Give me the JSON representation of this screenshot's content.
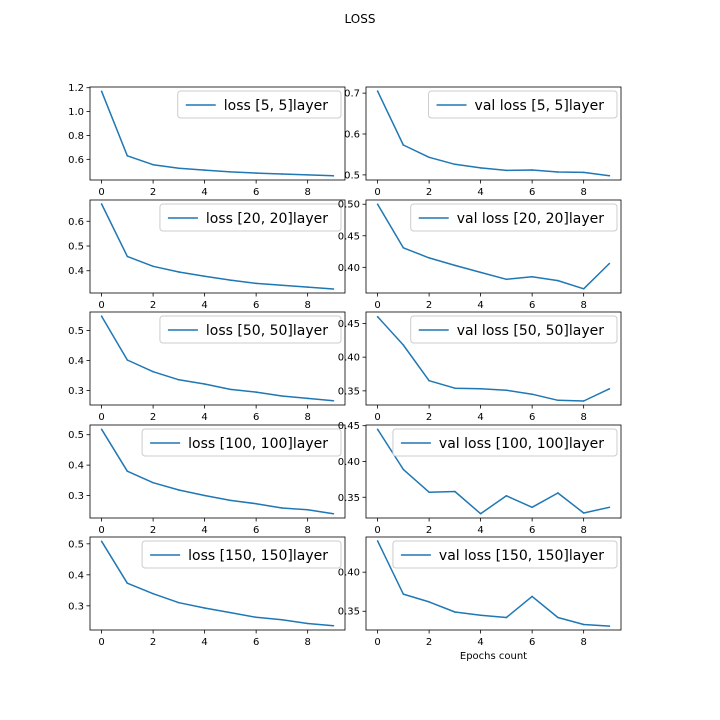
{
  "figure": {
    "suptitle": "LOSS",
    "line_color": "#1f77b4"
  },
  "chart_data": [
    {
      "type": "line",
      "series": [
        {
          "name": "loss [5, 5]layer",
          "x": [
            0,
            1,
            2,
            3,
            4,
            5,
            6,
            7,
            8,
            9
          ],
          "values": [
            1.17,
            0.63,
            0.555,
            0.525,
            0.51,
            0.495,
            0.485,
            0.477,
            0.47,
            0.462
          ]
        }
      ],
      "xticks": [
        0,
        2,
        4,
        6,
        8
      ],
      "yticks": [
        0.6,
        0.8,
        1.0,
        1.2
      ],
      "ytick_labels": [
        "0.6",
        "0.8",
        "1.0",
        "1.2"
      ],
      "xlim": [
        -0.45,
        9.45
      ],
      "ylim": [
        0.427,
        1.206
      ],
      "legend": "upper right",
      "grid": false,
      "xlabel": ""
    },
    {
      "type": "line",
      "series": [
        {
          "name": "val loss [5, 5]layer",
          "x": [
            0,
            1,
            2,
            3,
            4,
            5,
            6,
            7,
            8,
            9
          ],
          "values": [
            0.705,
            0.573,
            0.543,
            0.526,
            0.517,
            0.511,
            0.512,
            0.507,
            0.506,
            0.498
          ]
        }
      ],
      "xticks": [
        0,
        2,
        4,
        6,
        8
      ],
      "yticks": [
        0.5,
        0.6,
        0.7
      ],
      "ytick_labels": [
        "0.5",
        "0.6",
        "0.7"
      ],
      "xlim": [
        -0.45,
        9.45
      ],
      "ylim": [
        0.4875,
        0.715
      ],
      "legend": "upper right",
      "grid": false,
      "xlabel": ""
    },
    {
      "type": "line",
      "series": [
        {
          "name": "loss [20, 20]layer",
          "x": [
            0,
            1,
            2,
            3,
            4,
            5,
            6,
            7,
            8,
            9
          ],
          "values": [
            0.67,
            0.458,
            0.418,
            0.395,
            0.378,
            0.362,
            0.349,
            0.341,
            0.334,
            0.326
          ]
        }
      ],
      "xticks": [
        0,
        2,
        4,
        6,
        8
      ],
      "yticks": [
        0.4,
        0.5,
        0.6
      ],
      "ytick_labels": [
        "0.4",
        "0.5",
        "0.6"
      ],
      "xlim": [
        -0.45,
        9.45
      ],
      "ylim": [
        0.31,
        0.686
      ],
      "legend": "upper right",
      "grid": false,
      "xlabel": ""
    },
    {
      "type": "line",
      "series": [
        {
          "name": "val loss [20, 20]layer",
          "x": [
            0,
            1,
            2,
            3,
            4,
            5,
            6,
            7,
            8,
            9
          ],
          "values": [
            0.5,
            0.431,
            0.415,
            0.403,
            0.392,
            0.381,
            0.385,
            0.379,
            0.366,
            0.406
          ]
        }
      ],
      "xticks": [
        0,
        2,
        4,
        6,
        8
      ],
      "yticks": [
        0.4,
        0.45,
        0.5
      ],
      "ytick_labels": [
        "0.40",
        "0.45",
        "0.50"
      ],
      "xlim": [
        -0.45,
        9.45
      ],
      "ylim": [
        0.3593,
        0.5067
      ],
      "legend": "upper right",
      "grid": false,
      "xlabel": ""
    },
    {
      "type": "line",
      "series": [
        {
          "name": "loss [50, 50]layer",
          "x": [
            0,
            1,
            2,
            3,
            4,
            5,
            6,
            7,
            8,
            9
          ],
          "values": [
            0.548,
            0.402,
            0.363,
            0.336,
            0.322,
            0.304,
            0.295,
            0.282,
            0.274,
            0.266
          ]
        }
      ],
      "xticks": [
        0,
        2,
        4,
        6,
        8
      ],
      "yticks": [
        0.3,
        0.4,
        0.5
      ],
      "ytick_labels": [
        "0.3",
        "0.4",
        "0.5"
      ],
      "xlim": [
        -0.45,
        9.45
      ],
      "ylim": [
        0.252,
        0.562
      ],
      "legend": "upper right",
      "grid": false,
      "xlabel": ""
    },
    {
      "type": "line",
      "series": [
        {
          "name": "val loss [50, 50]layer",
          "x": [
            0,
            1,
            2,
            3,
            4,
            5,
            6,
            7,
            8,
            9
          ],
          "values": [
            0.46,
            0.418,
            0.365,
            0.354,
            0.353,
            0.351,
            0.345,
            0.336,
            0.335,
            0.353
          ]
        }
      ],
      "xticks": [
        0,
        2,
        4,
        6,
        8
      ],
      "yticks": [
        0.35,
        0.4,
        0.45
      ],
      "ytick_labels": [
        "0.35",
        "0.40",
        "0.45"
      ],
      "xlim": [
        -0.45,
        9.45
      ],
      "ylim": [
        0.329,
        0.467
      ],
      "legend": "upper right",
      "grid": false,
      "xlabel": ""
    },
    {
      "type": "line",
      "series": [
        {
          "name": "loss [100, 100]layer",
          "x": [
            0,
            1,
            2,
            3,
            4,
            5,
            6,
            7,
            8,
            9
          ],
          "values": [
            0.518,
            0.38,
            0.342,
            0.318,
            0.3,
            0.284,
            0.273,
            0.259,
            0.253,
            0.24
          ]
        }
      ],
      "xticks": [
        0,
        2,
        4,
        6,
        8
      ],
      "yticks": [
        0.3,
        0.4,
        0.5
      ],
      "ytick_labels": [
        "0.3",
        "0.4",
        "0.5"
      ],
      "xlim": [
        -0.45,
        9.45
      ],
      "ylim": [
        0.226,
        0.532
      ],
      "legend": "upper right",
      "grid": false,
      "xlabel": ""
    },
    {
      "type": "line",
      "series": [
        {
          "name": "val loss [100, 100]layer",
          "x": [
            0,
            1,
            2,
            3,
            4,
            5,
            6,
            7,
            8,
            9
          ],
          "values": [
            0.445,
            0.389,
            0.357,
            0.358,
            0.327,
            0.352,
            0.336,
            0.356,
            0.328,
            0.336
          ]
        }
      ],
      "xticks": [
        0,
        2,
        4,
        6,
        8
      ],
      "yticks": [
        0.35,
        0.4,
        0.45
      ],
      "ytick_labels": [
        "0.35",
        "0.40",
        "0.45"
      ],
      "xlim": [
        -0.45,
        9.45
      ],
      "ylim": [
        0.321,
        0.451
      ],
      "legend": "upper right",
      "grid": false,
      "xlabel": ""
    },
    {
      "type": "line",
      "series": [
        {
          "name": "loss [150, 150]layer",
          "x": [
            0,
            1,
            2,
            3,
            4,
            5,
            6,
            7,
            8,
            9
          ],
          "values": [
            0.508,
            0.373,
            0.339,
            0.31,
            0.293,
            0.278,
            0.263,
            0.255,
            0.243,
            0.236
          ]
        }
      ],
      "xticks": [
        0,
        2,
        4,
        6,
        8
      ],
      "yticks": [
        0.3,
        0.4,
        0.5
      ],
      "ytick_labels": [
        "0.3",
        "0.4",
        "0.5"
      ],
      "xlim": [
        -0.45,
        9.45
      ],
      "ylim": [
        0.222,
        0.522
      ],
      "legend": "upper right",
      "grid": false,
      "xlabel": ""
    },
    {
      "type": "line",
      "series": [
        {
          "name": "val loss [150, 150]layer",
          "x": [
            0,
            1,
            2,
            3,
            4,
            5,
            6,
            7,
            8,
            9
          ],
          "values": [
            0.44,
            0.372,
            0.362,
            0.349,
            0.345,
            0.342,
            0.369,
            0.342,
            0.333,
            0.331
          ]
        }
      ],
      "xticks": [
        0,
        2,
        4,
        6,
        8
      ],
      "yticks": [
        0.35,
        0.4
      ],
      "ytick_labels": [
        "0.35",
        "0.40"
      ],
      "xlim": [
        -0.45,
        9.45
      ],
      "ylim": [
        0.326,
        0.445
      ],
      "legend": "upper right",
      "grid": false,
      "xlabel": "Epochs count"
    }
  ]
}
